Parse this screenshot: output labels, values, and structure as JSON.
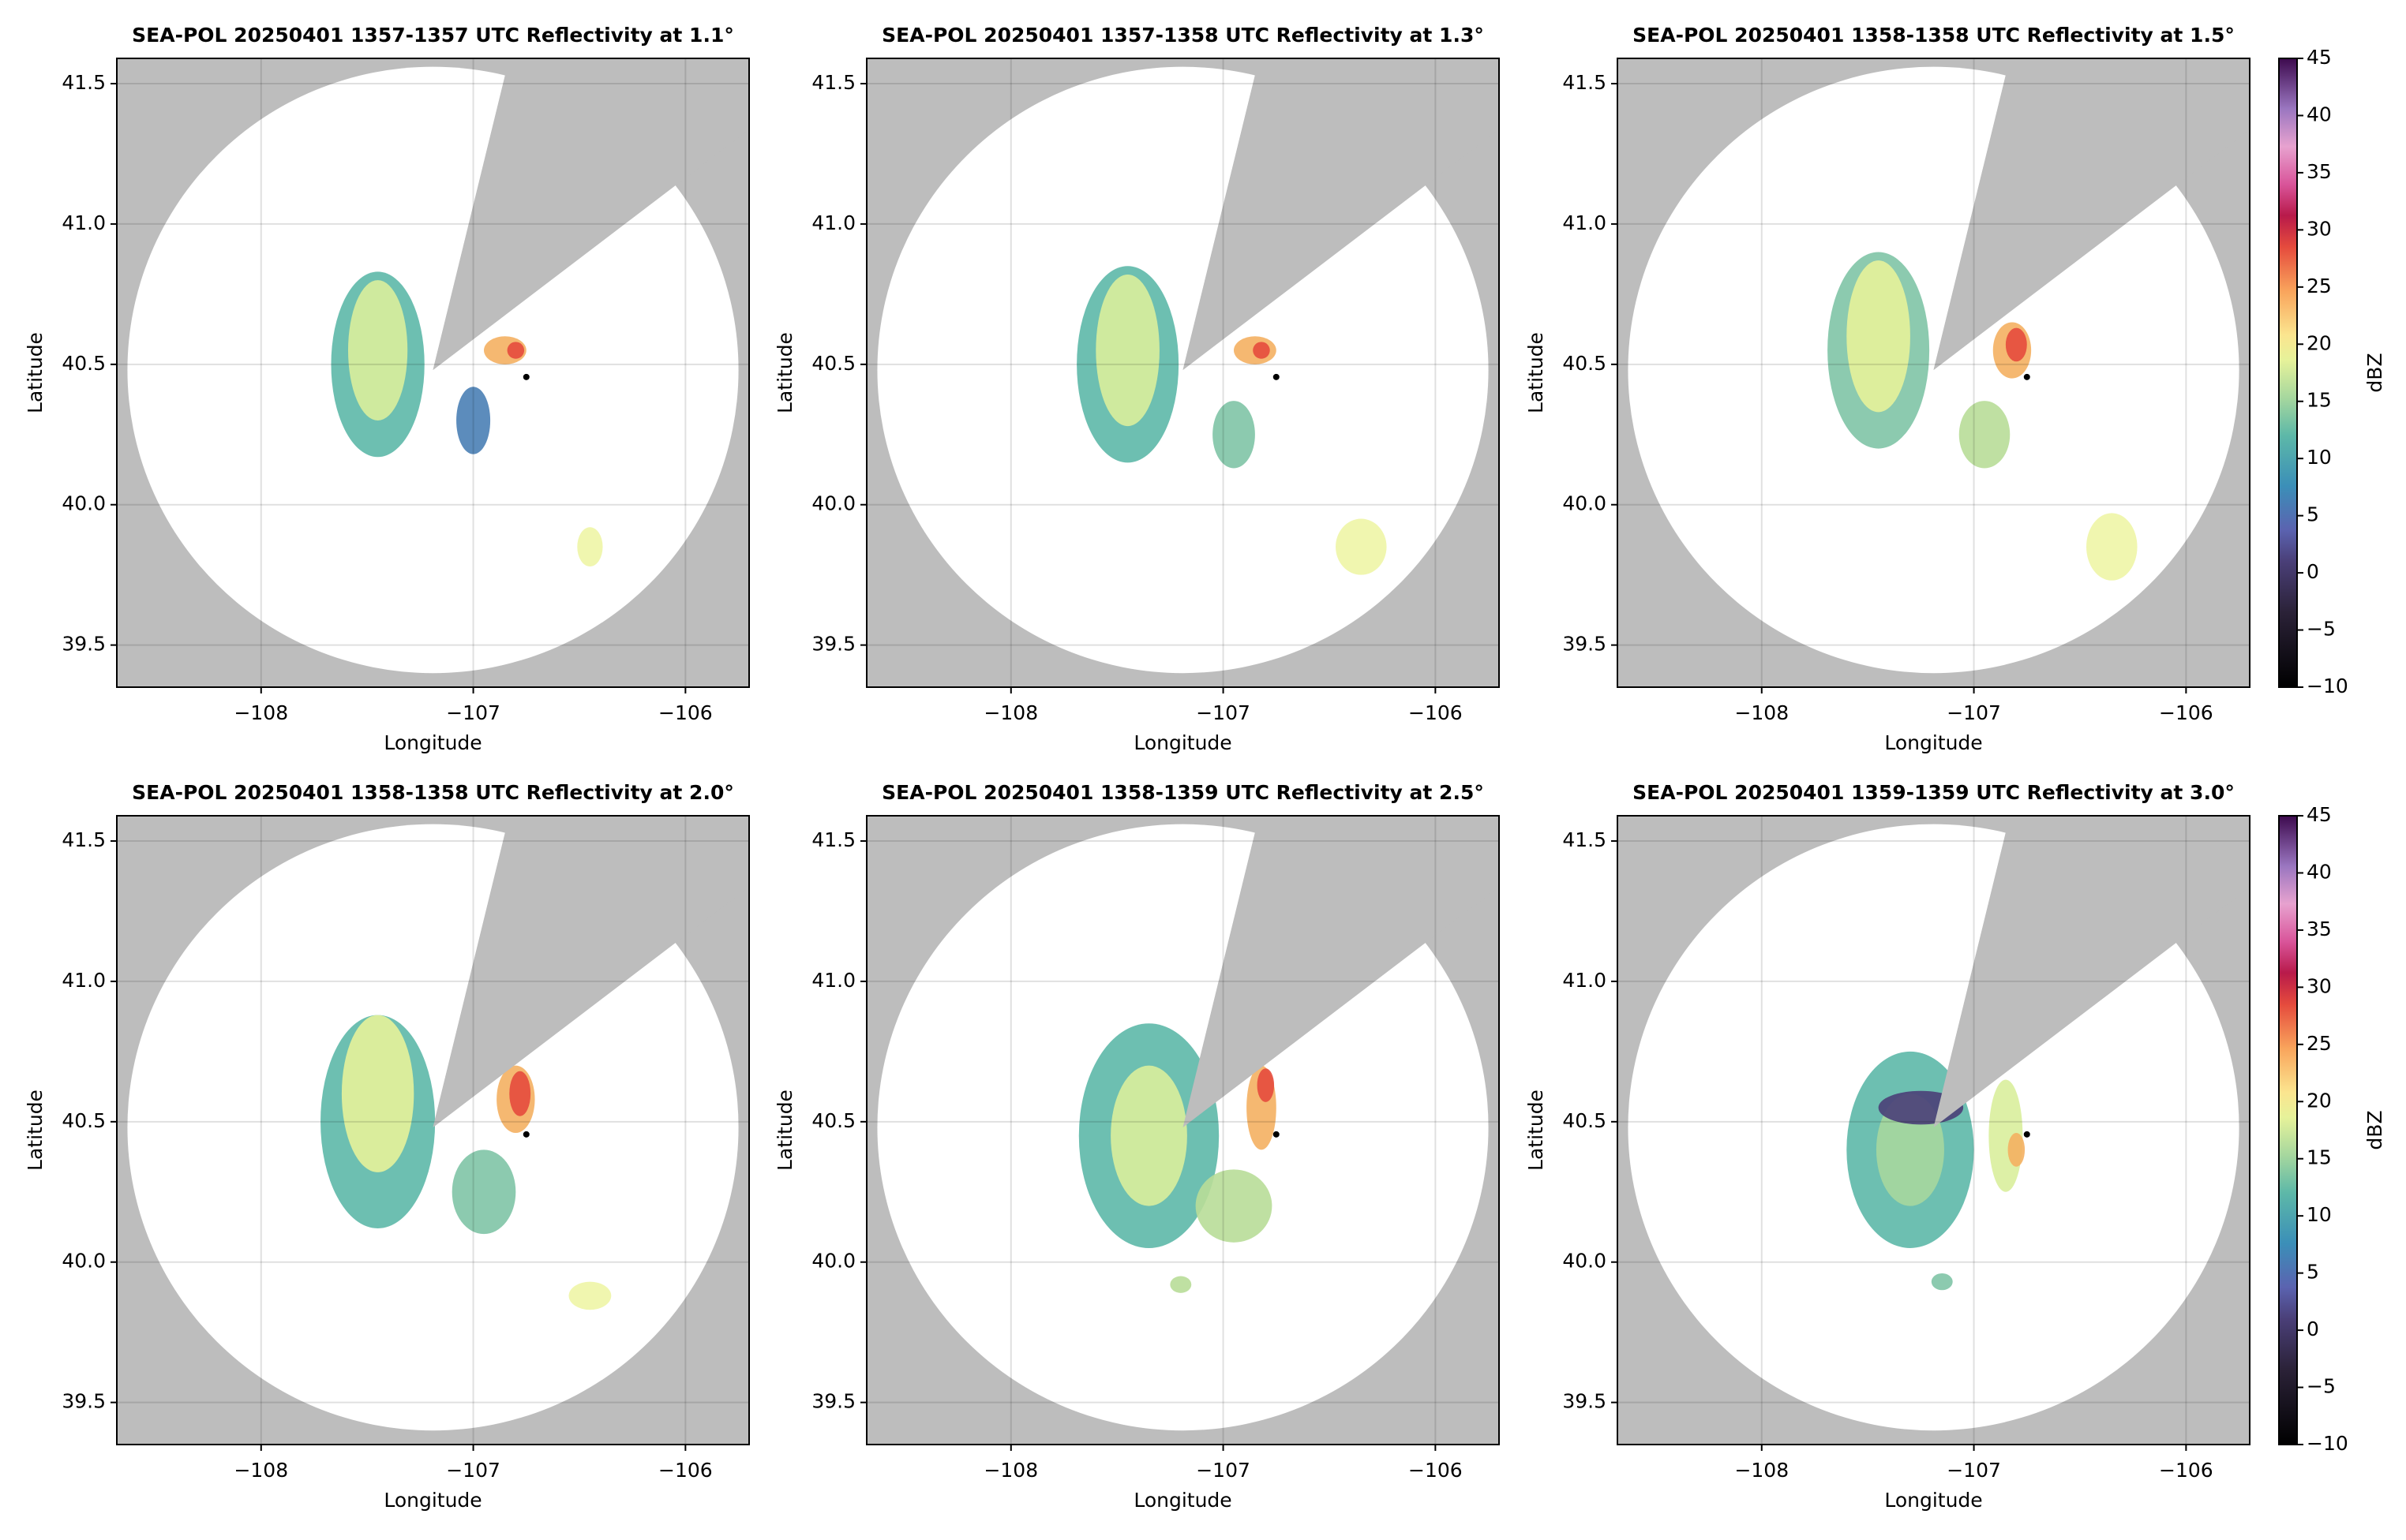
{
  "chart_data": [
    {
      "type": "radar",
      "title": "SEA-POL 20250401 1357-1357 UTC Reflectivity at 1.1°",
      "xlabel": "Longitude",
      "ylabel": "Latitude",
      "xlim": [
        -108.68,
        -105.7
      ],
      "ylim": [
        39.35,
        41.59
      ],
      "xticks": [
        {
          "value": -108,
          "label": "−108"
        },
        {
          "value": -107,
          "label": "−107"
        },
        {
          "value": -106,
          "label": "−106"
        }
      ],
      "yticks": [
        39.5,
        {
          "value": 40,
          "label": "40.0"
        },
        40.5,
        {
          "value": 41,
          "label": "41.0"
        },
        41.5
      ],
      "grid": true
    },
    {
      "type": "radar",
      "title": "SEA-POL 20250401 1357-1358 UTC Reflectivity at 1.3°",
      "xlabel": "Longitude",
      "ylabel": "Latitude",
      "xlim": [
        -108.68,
        -105.7
      ],
      "ylim": [
        39.35,
        41.59
      ],
      "xticks": [
        {
          "value": -108,
          "label": "−108"
        },
        {
          "value": -107,
          "label": "−107"
        },
        {
          "value": -106,
          "label": "−106"
        }
      ],
      "yticks": [
        39.5,
        {
          "value": 40,
          "label": "40.0"
        },
        40.5,
        {
          "value": 41,
          "label": "41.0"
        },
        41.5
      ],
      "grid": true
    },
    {
      "type": "radar",
      "title": "SEA-POL 20250401 1358-1358 UTC Reflectivity at 1.5°",
      "xlabel": "Longitude",
      "ylabel": "Latitude",
      "xlim": [
        -108.68,
        -105.7
      ],
      "ylim": [
        39.35,
        41.59
      ],
      "xticks": [
        {
          "value": -108,
          "label": "−108"
        },
        {
          "value": -107,
          "label": "−107"
        },
        {
          "value": -106,
          "label": "−106"
        }
      ],
      "yticks": [
        39.5,
        {
          "value": 40,
          "label": "40.0"
        },
        40.5,
        {
          "value": 41,
          "label": "41.0"
        },
        41.5
      ],
      "grid": true,
      "colorbar": {
        "label": "dBZ",
        "lim": [
          -10,
          45
        ],
        "ticks": [
          {
            "value": -10,
            "label": "−10"
          },
          {
            "value": -5,
            "label": "−5"
          },
          0,
          5,
          10,
          15,
          20,
          25,
          30,
          35,
          40,
          45
        ]
      }
    },
    {
      "type": "radar",
      "title": "SEA-POL 20250401 1358-1358 UTC Reflectivity at 2.0°",
      "xlabel": "Longitude",
      "ylabel": "Latitude",
      "xlim": [
        -108.68,
        -105.7
      ],
      "ylim": [
        39.35,
        41.59
      ],
      "xticks": [
        {
          "value": -108,
          "label": "−108"
        },
        {
          "value": -107,
          "label": "−107"
        },
        {
          "value": -106,
          "label": "−106"
        }
      ],
      "yticks": [
        39.5,
        {
          "value": 40,
          "label": "40.0"
        },
        40.5,
        {
          "value": 41,
          "label": "41.0"
        },
        41.5
      ],
      "grid": true
    },
    {
      "type": "radar",
      "title": "SEA-POL 20250401 1358-1359 UTC Reflectivity at 2.5°",
      "xlabel": "Longitude",
      "ylabel": "Latitude",
      "xlim": [
        -108.68,
        -105.7
      ],
      "ylim": [
        39.35,
        41.59
      ],
      "xticks": [
        {
          "value": -108,
          "label": "−108"
        },
        {
          "value": -107,
          "label": "−107"
        },
        {
          "value": -106,
          "label": "−106"
        }
      ],
      "yticks": [
        39.5,
        {
          "value": 40,
          "label": "40.0"
        },
        40.5,
        {
          "value": 41,
          "label": "41.0"
        },
        41.5
      ],
      "grid": true
    },
    {
      "type": "radar",
      "title": "SEA-POL 20250401 1359-1359 UTC Reflectivity at 3.0°",
      "xlabel": "Longitude",
      "ylabel": "Latitude",
      "xlim": [
        -108.68,
        -105.7
      ],
      "ylim": [
        39.35,
        41.59
      ],
      "xticks": [
        {
          "value": -108,
          "label": "−108"
        },
        {
          "value": -107,
          "label": "−107"
        },
        {
          "value": -106,
          "label": "−106"
        }
      ],
      "yticks": [
        39.5,
        {
          "value": 40,
          "label": "40.0"
        },
        40.5,
        {
          "value": 41,
          "label": "41.0"
        },
        41.5
      ],
      "grid": true,
      "colorbar": {
        "label": "dBZ",
        "lim": [
          -10,
          45
        ],
        "ticks": [
          {
            "value": -10,
            "label": "−10"
          },
          {
            "value": -5,
            "label": "−5"
          },
          0,
          5,
          10,
          15,
          20,
          25,
          30,
          35,
          40,
          45
        ]
      }
    }
  ]
}
